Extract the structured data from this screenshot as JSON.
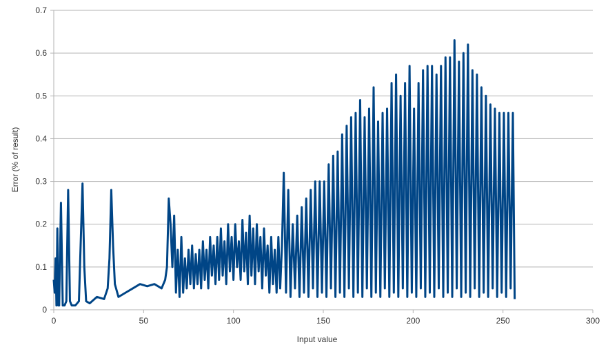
{
  "chart_data": {
    "type": "line",
    "x_label": "Input value",
    "y_label": "Error (% of result)",
    "xlim": [
      0,
      300
    ],
    "xticks": [
      0,
      50,
      100,
      150,
      200,
      250,
      300
    ],
    "ylim": [
      0,
      0.7
    ],
    "yticks": [
      0,
      0.1,
      0.2,
      0.3,
      0.4,
      0.5,
      0.6,
      0.7
    ],
    "grid": true,
    "x": [
      0,
      0.5,
      1,
      1.5,
      2,
      2.5,
      3,
      4,
      5,
      6,
      7,
      8,
      9,
      10,
      12,
      14,
      16,
      17,
      18,
      20,
      24,
      28,
      30,
      31,
      32,
      33,
      34,
      36,
      40,
      44,
      48,
      52,
      56,
      60,
      62,
      63,
      64,
      65,
      66,
      67,
      68,
      69,
      70,
      71,
      72,
      73,
      74,
      75,
      76,
      77,
      78,
      79,
      80,
      81,
      82,
      83,
      84,
      85,
      86,
      87,
      88,
      89,
      90,
      91,
      92,
      93,
      94,
      95,
      96,
      97,
      98,
      99,
      100,
      101,
      102,
      103,
      104,
      105,
      106,
      107,
      108,
      109,
      110,
      111,
      112,
      113,
      114,
      115,
      116,
      117,
      118,
      119,
      120,
      121,
      122,
      123,
      124,
      125,
      126,
      127,
      128,
      129.25,
      130.5,
      131.75,
      133,
      134.25,
      135.5,
      136.75,
      138,
      139.25,
      140.5,
      141.75,
      143,
      144.25,
      145.5,
      146.75,
      148,
      149.25,
      150.5,
      151.75,
      153,
      154.25,
      155.5,
      156.75,
      158,
      159.25,
      160.5,
      161.75,
      163,
      164.25,
      165.5,
      166.75,
      168,
      169.25,
      170.5,
      171.75,
      173,
      174.25,
      175.5,
      176.75,
      178,
      179.25,
      180.5,
      181.75,
      183,
      184.25,
      185.5,
      186.75,
      188,
      189.25,
      190.5,
      191.75,
      193,
      194.25,
      195.5,
      196.75,
      198,
      199.25,
      200.5,
      201.75,
      203,
      204.25,
      205.5,
      206.75,
      208,
      209.25,
      210.5,
      211.75,
      213,
      214.25,
      215.5,
      216.75,
      218,
      219.25,
      220.5,
      221.75,
      223,
      224.25,
      225.5,
      226.75,
      228,
      229.25,
      230.5,
      231.75,
      233,
      234.25,
      235.5,
      236.75,
      238,
      239.25,
      240.5,
      241.75,
      243,
      244.25,
      245.5,
      246.75,
      248,
      249.25,
      250.5,
      251.75,
      253,
      254.25,
      255.5,
      256.5
    ],
    "series": [
      {
        "color": "#004586",
        "values": [
          0.07,
          0.04,
          0.12,
          0.01,
          0.19,
          0.01,
          0.01,
          0.25,
          0.01,
          0.01,
          0.02,
          0.28,
          0.02,
          0.01,
          0.01,
          0.02,
          0.295,
          0.1,
          0.02,
          0.015,
          0.03,
          0.025,
          0.05,
          0.12,
          0.28,
          0.15,
          0.06,
          0.03,
          0.04,
          0.05,
          0.06,
          0.055,
          0.06,
          0.05,
          0.07,
          0.1,
          0.26,
          0.2,
          0.1,
          0.22,
          0.04,
          0.14,
          0.03,
          0.17,
          0.04,
          0.12,
          0.05,
          0.14,
          0.06,
          0.15,
          0.05,
          0.13,
          0.06,
          0.14,
          0.05,
          0.16,
          0.07,
          0.14,
          0.05,
          0.17,
          0.08,
          0.15,
          0.06,
          0.17,
          0.07,
          0.19,
          0.08,
          0.16,
          0.06,
          0.2,
          0.09,
          0.17,
          0.07,
          0.2,
          0.1,
          0.16,
          0.07,
          0.21,
          0.09,
          0.18,
          0.06,
          0.22,
          0.08,
          0.19,
          0.06,
          0.2,
          0.09,
          0.17,
          0.05,
          0.19,
          0.08,
          0.15,
          0.04,
          0.17,
          0.06,
          0.14,
          0.04,
          0.17,
          0.05,
          0.15,
          0.32,
          0.04,
          0.28,
          0.03,
          0.2,
          0.05,
          0.22,
          0.03,
          0.24,
          0.04,
          0.26,
          0.03,
          0.28,
          0.05,
          0.3,
          0.03,
          0.3,
          0.04,
          0.3,
          0.03,
          0.34,
          0.05,
          0.36,
          0.03,
          0.37,
          0.04,
          0.41,
          0.03,
          0.43,
          0.05,
          0.45,
          0.03,
          0.46,
          0.04,
          0.49,
          0.03,
          0.45,
          0.05,
          0.47,
          0.03,
          0.52,
          0.04,
          0.44,
          0.03,
          0.46,
          0.05,
          0.47,
          0.03,
          0.53,
          0.04,
          0.55,
          0.03,
          0.5,
          0.05,
          0.53,
          0.03,
          0.57,
          0.04,
          0.47,
          0.03,
          0.53,
          0.05,
          0.56,
          0.03,
          0.57,
          0.04,
          0.57,
          0.03,
          0.55,
          0.05,
          0.57,
          0.03,
          0.59,
          0.04,
          0.59,
          0.03,
          0.63,
          0.05,
          0.58,
          0.03,
          0.6,
          0.04,
          0.62,
          0.03,
          0.56,
          0.05,
          0.55,
          0.03,
          0.52,
          0.04,
          0.5,
          0.03,
          0.48,
          0.05,
          0.47,
          0.03,
          0.46,
          0.04,
          0.46,
          0.03,
          0.46,
          0.05,
          0.46,
          0.025
        ]
      }
    ]
  }
}
